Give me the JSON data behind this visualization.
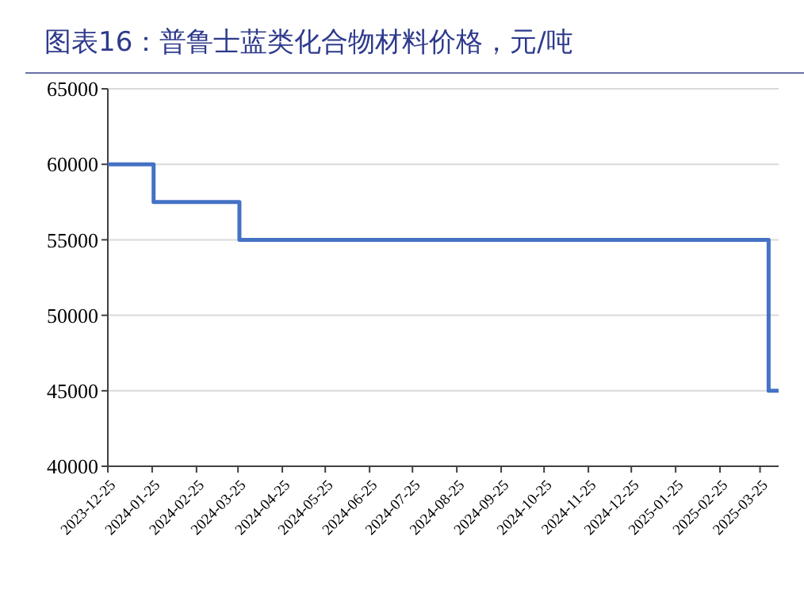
{
  "chart_data": {
    "type": "step",
    "title": "图表16：普鲁士蓝类化合物材料价格，元/吨",
    "x": [
      "2023-12-25",
      "2024-01-26",
      "2024-03-26",
      "2025-03-31",
      "2025-04-07"
    ],
    "series": [
      {
        "color": "#4472c4",
        "values": [
          60000,
          57500,
          55000,
          45000,
          45000
        ]
      }
    ],
    "xlim": [
      "2023-12-25",
      "2025-04-07"
    ],
    "xticks": [
      "2023-12-25",
      "2024-01-25",
      "2024-02-25",
      "2024-03-25",
      "2024-04-25",
      "2024-05-25",
      "2024-06-25",
      "2024-07-25",
      "2024-08-25",
      "2024-09-25",
      "2024-10-25",
      "2024-11-25",
      "2024-12-25",
      "2025-01-25",
      "2025-02-25",
      "2025-03-25"
    ],
    "ylim": [
      40000,
      65000
    ],
    "yticks": [
      40000,
      45000,
      50000,
      55000,
      60000,
      65000
    ],
    "grid": "y",
    "line_style": "solid",
    "marker": "none"
  }
}
